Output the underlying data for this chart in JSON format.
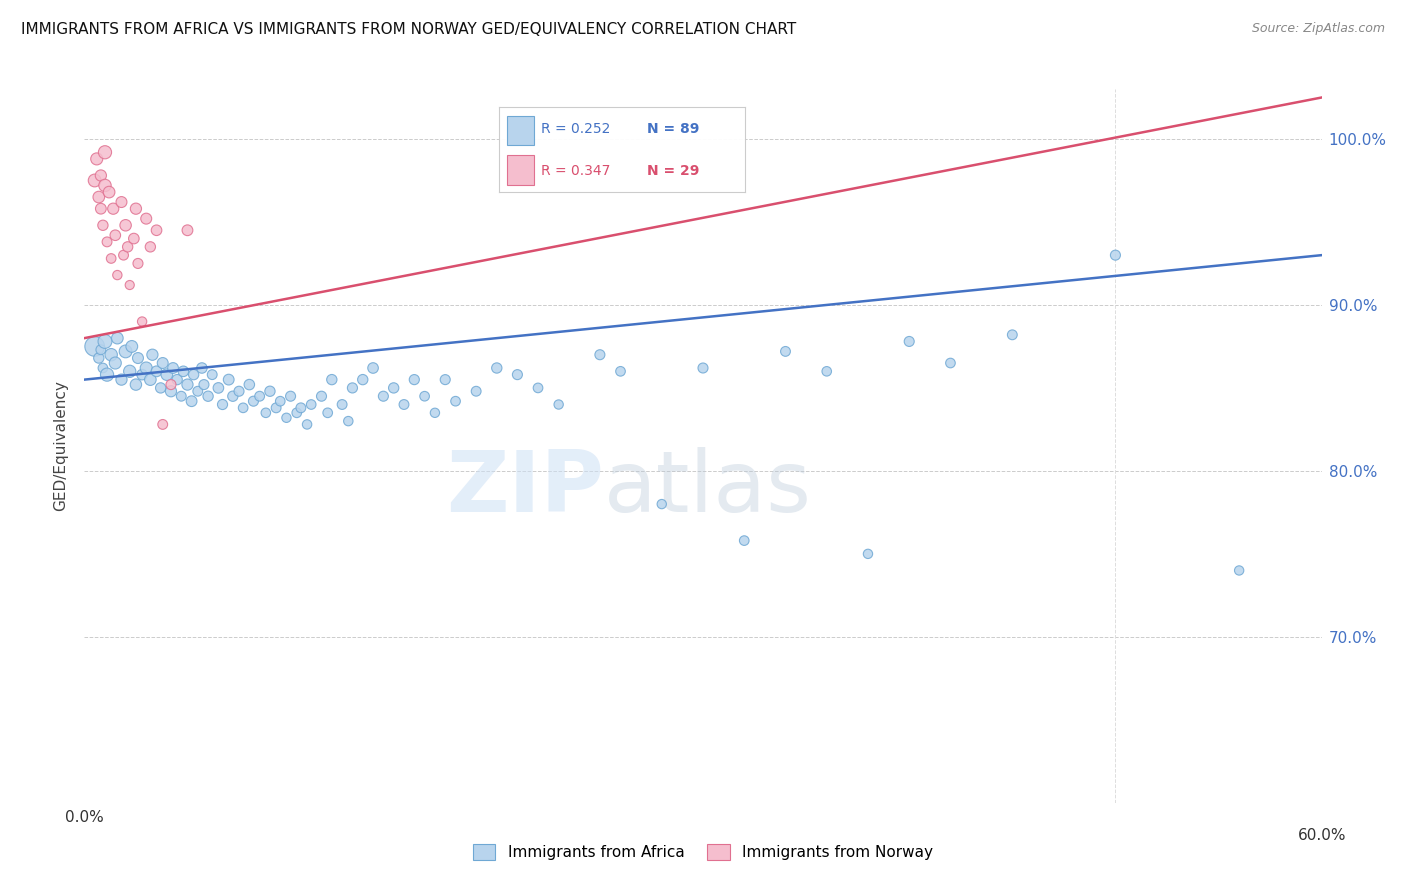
{
  "title": "IMMIGRANTS FROM AFRICA VS IMMIGRANTS FROM NORWAY GED/EQUIVALENCY CORRELATION CHART",
  "source": "Source: ZipAtlas.com",
  "ylabel": "GED/Equivalency",
  "xlim": [
    0.0,
    0.6
  ],
  "ylim": [
    0.6,
    1.03
  ],
  "yticks": [
    0.7,
    0.8,
    0.9,
    1.0
  ],
  "ytick_labels": [
    "70.0%",
    "80.0%",
    "90.0%",
    "100.0%"
  ],
  "xticks": [
    0.0,
    0.1,
    0.2,
    0.3,
    0.4,
    0.5,
    0.6
  ],
  "africa_color": "#b8d4ed",
  "africa_edge": "#6fa8d4",
  "norway_color": "#f5bece",
  "norway_edge": "#e07090",
  "trendline_africa": "#4472c4",
  "trendline_norway": "#d94f6e",
  "legend_africa_R": "0.252",
  "legend_africa_N": "89",
  "legend_norway_R": "0.347",
  "legend_norway_N": "29",
  "africa_trendline_x0": 0.0,
  "africa_trendline_y0": 0.855,
  "africa_trendline_x1": 0.6,
  "africa_trendline_y1": 0.93,
  "norway_trendline_x0": 0.0,
  "norway_trendline_y0": 0.88,
  "norway_trendline_x1": 0.6,
  "norway_trendline_y1": 1.025,
  "africa_x": [
    0.005,
    0.007,
    0.008,
    0.009,
    0.01,
    0.011,
    0.013,
    0.015,
    0.016,
    0.018,
    0.02,
    0.022,
    0.023,
    0.025,
    0.026,
    0.028,
    0.03,
    0.032,
    0.033,
    0.035,
    0.037,
    0.038,
    0.04,
    0.042,
    0.043,
    0.045,
    0.047,
    0.048,
    0.05,
    0.052,
    0.053,
    0.055,
    0.057,
    0.058,
    0.06,
    0.062,
    0.065,
    0.067,
    0.07,
    0.072,
    0.075,
    0.077,
    0.08,
    0.082,
    0.085,
    0.088,
    0.09,
    0.093,
    0.095,
    0.098,
    0.1,
    0.103,
    0.105,
    0.108,
    0.11,
    0.115,
    0.118,
    0.12,
    0.125,
    0.128,
    0.13,
    0.135,
    0.14,
    0.145,
    0.15,
    0.155,
    0.16,
    0.165,
    0.17,
    0.175,
    0.18,
    0.19,
    0.2,
    0.21,
    0.22,
    0.23,
    0.25,
    0.26,
    0.28,
    0.3,
    0.32,
    0.34,
    0.36,
    0.38,
    0.4,
    0.42,
    0.45,
    0.5,
    0.56
  ],
  "africa_y": [
    0.875,
    0.868,
    0.873,
    0.862,
    0.878,
    0.858,
    0.87,
    0.865,
    0.88,
    0.855,
    0.872,
    0.86,
    0.875,
    0.852,
    0.868,
    0.858,
    0.862,
    0.855,
    0.87,
    0.86,
    0.85,
    0.865,
    0.858,
    0.848,
    0.862,
    0.855,
    0.845,
    0.86,
    0.852,
    0.842,
    0.858,
    0.848,
    0.862,
    0.852,
    0.845,
    0.858,
    0.85,
    0.84,
    0.855,
    0.845,
    0.848,
    0.838,
    0.852,
    0.842,
    0.845,
    0.835,
    0.848,
    0.838,
    0.842,
    0.832,
    0.845,
    0.835,
    0.838,
    0.828,
    0.84,
    0.845,
    0.835,
    0.855,
    0.84,
    0.83,
    0.85,
    0.855,
    0.862,
    0.845,
    0.85,
    0.84,
    0.855,
    0.845,
    0.835,
    0.855,
    0.842,
    0.848,
    0.862,
    0.858,
    0.85,
    0.84,
    0.87,
    0.86,
    0.78,
    0.862,
    0.758,
    0.872,
    0.86,
    0.75,
    0.878,
    0.865,
    0.882,
    0.93,
    0.74
  ],
  "africa_sizes": [
    200,
    55,
    50,
    48,
    100,
    90,
    80,
    75,
    70,
    65,
    85,
    78,
    72,
    67,
    62,
    58,
    75,
    70,
    65,
    60,
    55,
    62,
    70,
    65,
    60,
    55,
    50,
    58,
    65,
    60,
    55,
    50,
    57,
    52,
    55,
    50,
    58,
    53,
    60,
    55,
    52,
    48,
    57,
    52,
    50,
    47,
    55,
    50,
    48,
    45,
    52,
    48,
    50,
    46,
    48,
    52,
    48,
    55,
    50,
    46,
    53,
    55,
    58,
    52,
    55,
    50,
    53,
    48,
    45,
    52,
    48,
    50,
    55,
    52,
    48,
    45,
    52,
    48,
    45,
    52,
    48,
    50,
    47,
    45,
    52,
    48,
    50,
    52,
    45
  ],
  "norway_x": [
    0.005,
    0.006,
    0.007,
    0.008,
    0.008,
    0.009,
    0.01,
    0.01,
    0.011,
    0.012,
    0.013,
    0.014,
    0.015,
    0.016,
    0.018,
    0.019,
    0.02,
    0.021,
    0.022,
    0.024,
    0.025,
    0.026,
    0.028,
    0.03,
    0.032,
    0.035,
    0.038,
    0.042,
    0.05
  ],
  "norway_y": [
    0.975,
    0.988,
    0.965,
    0.978,
    0.958,
    0.948,
    0.992,
    0.972,
    0.938,
    0.968,
    0.928,
    0.958,
    0.942,
    0.918,
    0.962,
    0.93,
    0.948,
    0.935,
    0.912,
    0.94,
    0.958,
    0.925,
    0.89,
    0.952,
    0.935,
    0.945,
    0.828,
    0.852,
    0.945
  ],
  "norway_sizes": [
    85,
    75,
    70,
    65,
    60,
    55,
    90,
    80,
    50,
    70,
    48,
    65,
    58,
    45,
    62,
    50,
    68,
    55,
    43,
    58,
    65,
    52,
    45,
    62,
    55,
    58,
    50,
    52,
    60
  ]
}
